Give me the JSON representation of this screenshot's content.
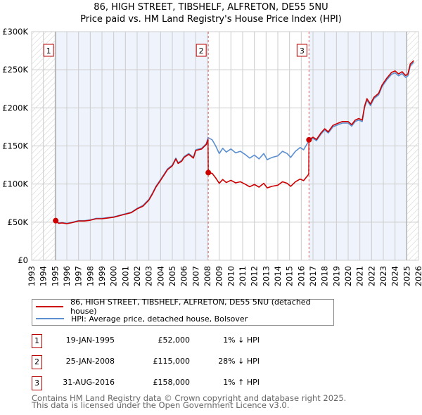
{
  "title_line1": "86, HIGH STREET, TIBSHELF, ALFRETON, DE55 5NU",
  "title_line2": "Price paid vs. HM Land Registry's House Price Index (HPI)",
  "chart_data": {
    "type": "line",
    "title": "86, HIGH STREET, TIBSHELF, ALFRETON, DE55 5NU — Price paid vs. HM Land Registry's House Price Index (HPI)",
    "xlim": [
      1993,
      2026
    ],
    "ylim": [
      0,
      300000
    ],
    "x_ticks": [
      1993,
      1994,
      1995,
      1996,
      1997,
      1998,
      1999,
      2000,
      2001,
      2002,
      2003,
      2004,
      2005,
      2006,
      2007,
      2008,
      2009,
      2010,
      2011,
      2012,
      2013,
      2014,
      2015,
      2016,
      2017,
      2018,
      2019,
      2020,
      2021,
      2022,
      2023,
      2024,
      2025,
      2026
    ],
    "y_ticks": [
      0,
      50000,
      100000,
      150000,
      200000,
      250000,
      300000
    ],
    "y_tick_labels": [
      "£0",
      "£50K",
      "£100K",
      "£150K",
      "£200K",
      "£250K",
      "£300K"
    ],
    "grid": true,
    "data_range": [
      1995.05,
      2025.0
    ],
    "colors": {
      "property": "#cc0000",
      "hpi": "#5b8fd0",
      "shade": "#eef3fc"
    },
    "series": [
      {
        "name": "86, HIGH STREET, TIBSHELF, ALFRETON, DE55 5NU (detached house)",
        "color": "#cc0000",
        "x": [
          1995.05,
          1995.3,
          1995.6,
          1996,
          1996.5,
          1997,
          1997.5,
          1998,
          1998.5,
          1999,
          1999.5,
          2000,
          2000.5,
          2001,
          2001.5,
          2002,
          2002.5,
          2003,
          2003.3,
          2003.6,
          2004,
          2004.3,
          2004.6,
          2005,
          2005.3,
          2005.5,
          2005.8,
          2006,
          2006.4,
          2006.8,
          2007,
          2007.5,
          2007.9,
          2008.05,
          2008.07,
          2008.4,
          2008.7,
          2009,
          2009.3,
          2009.6,
          2010,
          2010.4,
          2010.8,
          2011.2,
          2011.6,
          2012,
          2012.4,
          2012.8,
          2013.1,
          2013.5,
          2014,
          2014.4,
          2014.8,
          2015.1,
          2015.5,
          2015.9,
          2016.2,
          2016.64,
          2016.66,
          2017,
          2017.3,
          2017.7,
          2018,
          2018.3,
          2018.7,
          2019,
          2019.5,
          2020,
          2020.3,
          2020.6,
          2020.9,
          2021.2,
          2021.4,
          2021.6,
          2021.9,
          2022.2,
          2022.6,
          2022.9,
          2023.3,
          2023.7,
          2024,
          2024.3,
          2024.6,
          2024.9,
          2025.1,
          2025.3,
          2025.6
        ],
        "y": [
          52000,
          48500,
          49000,
          48000,
          49500,
          51500,
          51500,
          52500,
          54500,
          54500,
          55500,
          56500,
          58500,
          60500,
          62500,
          67500,
          71000,
          79000,
          87000,
          96000,
          105000,
          112000,
          119000,
          124000,
          133000,
          127000,
          130000,
          135000,
          139000,
          134000,
          144000,
          146000,
          152000,
          158000,
          115000,
          114000,
          108000,
          101000,
          106000,
          102000,
          105000,
          101500,
          103000,
          100000,
          96500,
          99500,
          96000,
          101000,
          95000,
          97000,
          98500,
          103000,
          101000,
          97000,
          103000,
          106500,
          104500,
          113000,
          158000,
          161500,
          158500,
          167500,
          172500,
          168500,
          177000,
          179000,
          182000,
          182000,
          178000,
          184000,
          186000,
          184000,
          202000,
          212000,
          205000,
          214000,
          219000,
          230000,
          239000,
          246500,
          248500,
          244500,
          247500,
          242500,
          244500,
          257500,
          262000
        ]
      },
      {
        "name": "HPI: Average price, detached house, Bolsover",
        "color": "#5b8fd0",
        "x": [
          1995.05,
          1995.3,
          1995.6,
          1996,
          1996.5,
          1997,
          1997.5,
          1998,
          1998.5,
          1999,
          1999.5,
          2000,
          2000.5,
          2001,
          2001.5,
          2002,
          2002.5,
          2003,
          2003.3,
          2003.6,
          2004,
          2004.3,
          2004.6,
          2005,
          2005.3,
          2005.5,
          2005.8,
          2006,
          2006.4,
          2006.8,
          2007,
          2007.5,
          2007.9,
          2008.05,
          2008.4,
          2008.7,
          2009,
          2009.3,
          2009.6,
          2010,
          2010.4,
          2010.8,
          2011.2,
          2011.6,
          2012,
          2012.4,
          2012.8,
          2013.1,
          2013.5,
          2014,
          2014.4,
          2014.8,
          2015.1,
          2015.5,
          2015.9,
          2016.2,
          2016.66,
          2017,
          2017.3,
          2017.7,
          2018,
          2018.3,
          2018.7,
          2019,
          2019.5,
          2020,
          2020.3,
          2020.6,
          2020.9,
          2021.2,
          2021.4,
          2021.6,
          2021.9,
          2022.2,
          2022.6,
          2022.9,
          2023.3,
          2023.7,
          2024,
          2024.3,
          2024.6,
          2024.9,
          2025.1,
          2025.3,
          2025.6
        ],
        "y": [
          52500,
          49000,
          49500,
          48500,
          50000,
          52000,
          52000,
          53000,
          55000,
          55000,
          56000,
          57000,
          59000,
          61000,
          63000,
          68000,
          72000,
          80000,
          88000,
          97000,
          106000,
          113000,
          120000,
          125000,
          134000,
          128000,
          131000,
          136000,
          140000,
          135000,
          145000,
          147000,
          153000,
          161000,
          158000,
          150000,
          140000,
          147000,
          142000,
          146000,
          141000,
          143000,
          139000,
          134000,
          138000,
          133000,
          140000,
          132000,
          135000,
          137000,
          143000,
          140000,
          135000,
          143000,
          148000,
          145000,
          157000,
          160000,
          157000,
          166000,
          171000,
          167000,
          175000,
          177000,
          180000,
          180000,
          176000,
          182000,
          184000,
          182000,
          200000,
          210000,
          203000,
          212000,
          217000,
          228000,
          237000,
          244000,
          246000,
          242000,
          245000,
          240000,
          242000,
          255000,
          260000
        ]
      }
    ],
    "annotations": [
      {
        "label": "1",
        "x": 1995.05,
        "y": 52000
      },
      {
        "label": "2",
        "x": 2008.07,
        "y": 115000
      },
      {
        "label": "3",
        "x": 2016.66,
        "y": 158000
      }
    ]
  },
  "legend": {
    "property": "86, HIGH STREET, TIBSHELF, ALFRETON, DE55 5NU (detached house)",
    "hpi": "HPI: Average price, detached house, Bolsover"
  },
  "sales": [
    {
      "num": "1",
      "date": "19-JAN-1995",
      "price": "£52,000",
      "hpi": "1% ↓ HPI"
    },
    {
      "num": "2",
      "date": "25-JAN-2008",
      "price": "£115,000",
      "hpi": "28% ↓ HPI"
    },
    {
      "num": "3",
      "date": "31-AUG-2016",
      "price": "£158,000",
      "hpi": "1% ↑ HPI"
    }
  ],
  "footer": {
    "line1": "Contains HM Land Registry data © Crown copyright and database right 2025.",
    "line2": "This data is licensed under the Open Government Licence v3.0."
  }
}
